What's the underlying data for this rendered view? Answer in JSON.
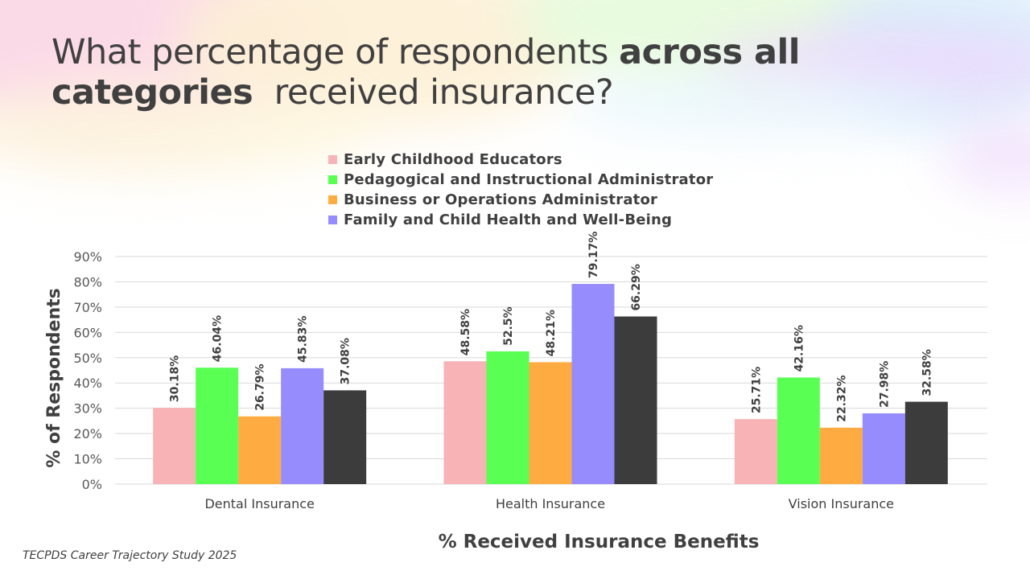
{
  "slide": {
    "title_parts": [
      {
        "text": "What percentage of respondents ",
        "bold": false
      },
      {
        "text": "across all",
        "bold": true
      },
      {
        "text": "categories",
        "bold": true
      },
      {
        "text": "  received insurance?",
        "bold": false
      }
    ],
    "source": "TECPDS Career Trajectory Study 2025"
  },
  "chart_data": {
    "type": "bar",
    "title": "What percentage of respondents across all categories received insurance?",
    "xlabel": "% Received Insurance Benefits",
    "ylabel": "% of Respondents",
    "ylim": [
      0,
      90
    ],
    "yticks": [
      "0%",
      "10%",
      "20%",
      "30%",
      "40%",
      "50%",
      "60%",
      "70%",
      "80%",
      "90%"
    ],
    "ytick_values": [
      0,
      10,
      20,
      30,
      40,
      50,
      60,
      70,
      80,
      90
    ],
    "grid": true,
    "legend_position": "top",
    "categories": [
      "Dental Insurance",
      "Health Insurance",
      "Vision Insurance"
    ],
    "series": [
      {
        "name": "Early Childhood Educators",
        "color": "#F7B3B5",
        "values": [
          30.18,
          48.58,
          25.71
        ],
        "labels": [
          "30.18%",
          "48.58%",
          "25.71%"
        ]
      },
      {
        "name": "Pedagogical and Instructional Administrator",
        "color": "#59FF52",
        "values": [
          46.04,
          52.5,
          42.16
        ],
        "labels": [
          "46.04%",
          "52.5%",
          "42.16%"
        ]
      },
      {
        "name": "Business or Operations Administrator",
        "color": "#FEAC41",
        "values": [
          26.79,
          48.21,
          22.32
        ],
        "labels": [
          "26.79%",
          "48.21%",
          "22.32%"
        ]
      },
      {
        "name": "Family and Child Health and Well-Being",
        "color": "#968CFD",
        "values": [
          45.83,
          79.17,
          27.98
        ],
        "labels": [
          "45.83%",
          "79.17%",
          "27.98%"
        ]
      },
      {
        "name": "",
        "color": "#3C3C3C",
        "values": [
          37.08,
          66.29,
          32.58
        ],
        "labels": [
          "37.08%",
          "66.29%",
          "32.58%"
        ]
      }
    ]
  }
}
